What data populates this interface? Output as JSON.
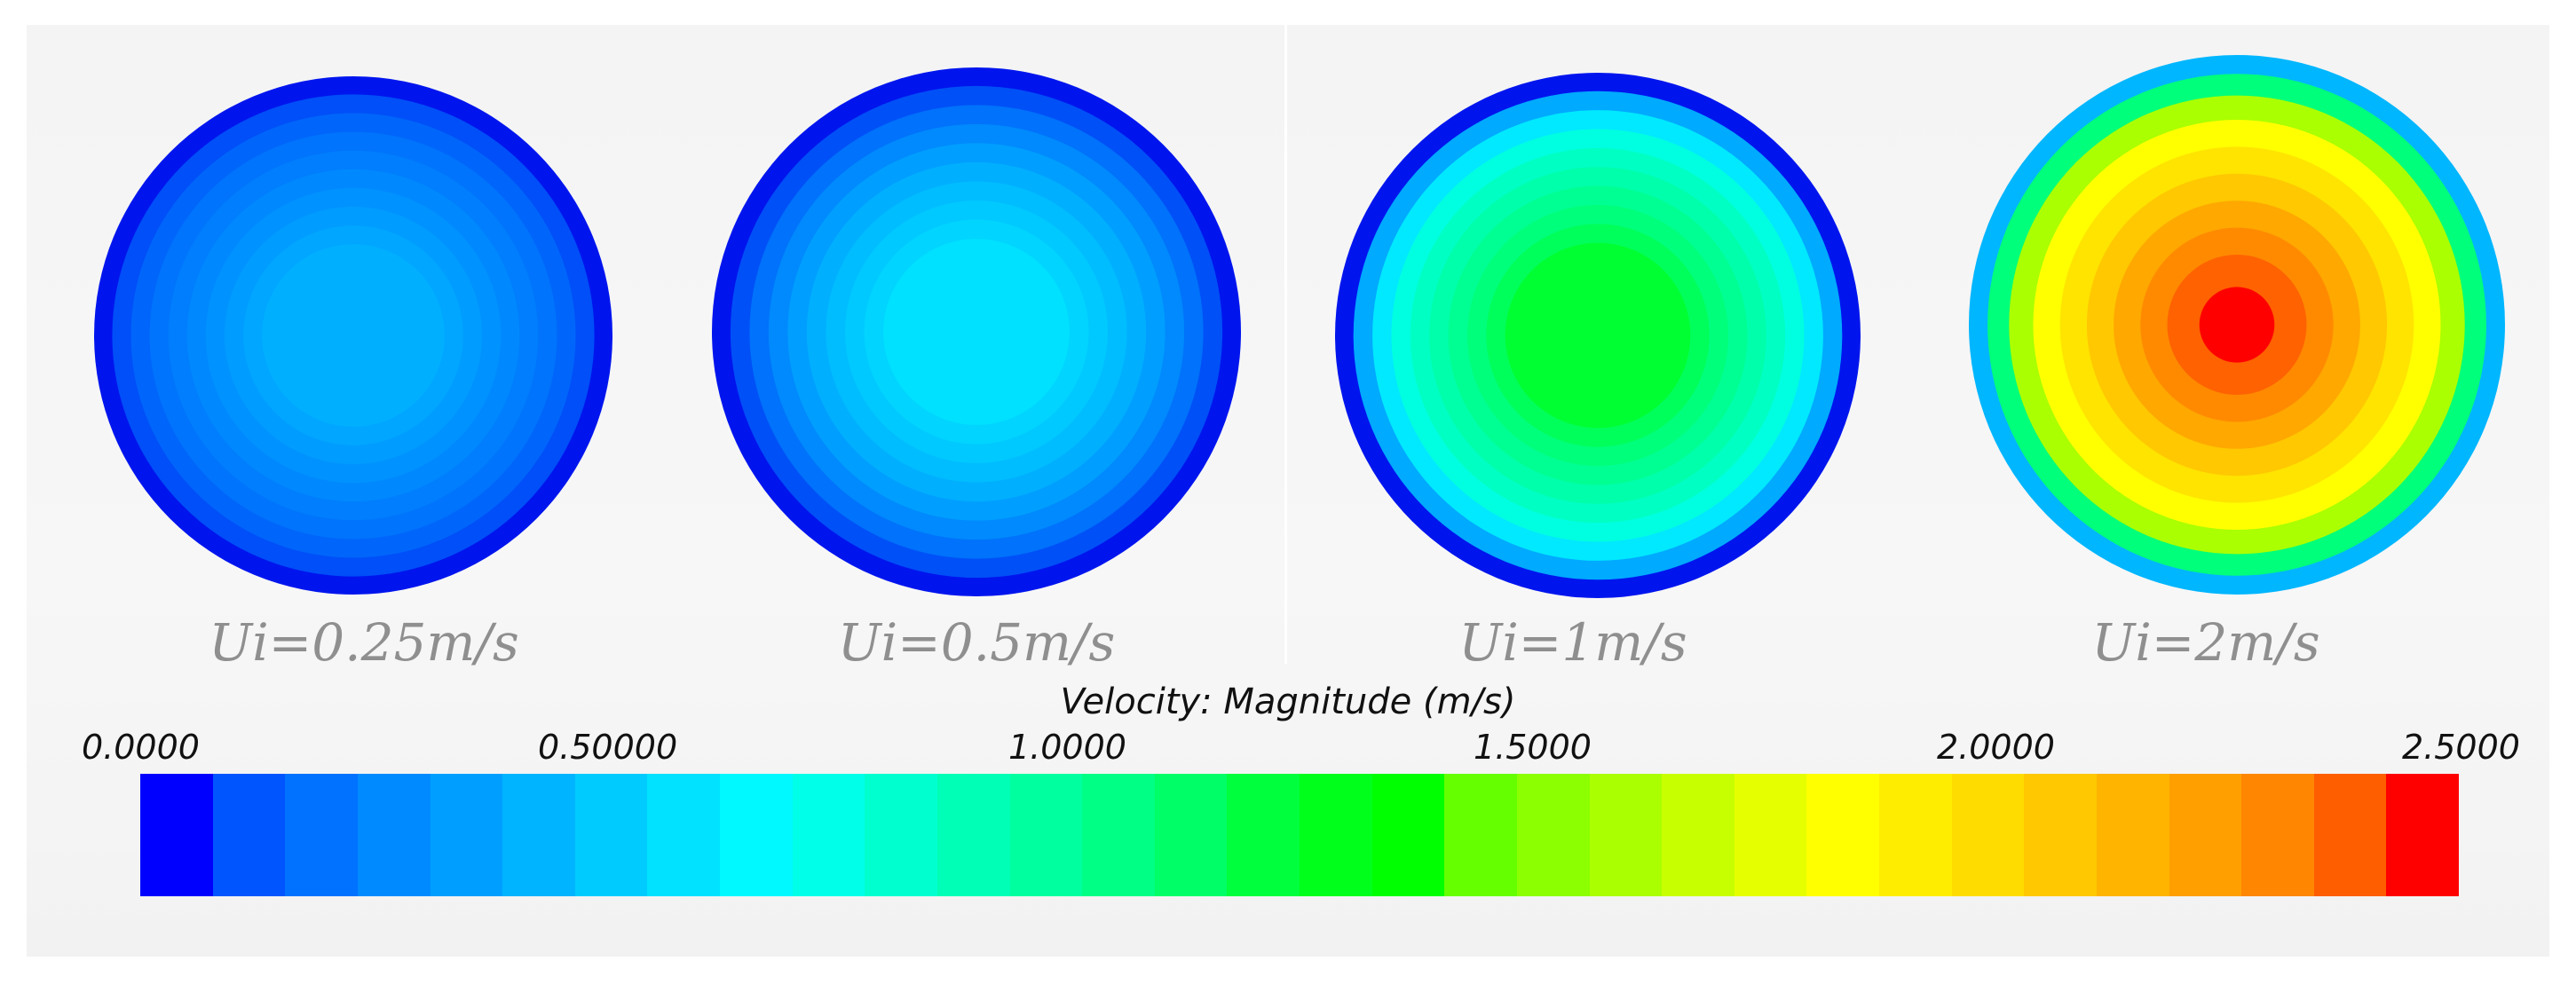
{
  "legend": {
    "title": "Velocity: Magnitude (m/s)",
    "ticks": [
      "0.0000",
      "0.50000",
      "1.0000",
      "1.5000",
      "2.0000",
      "2.5000"
    ],
    "tick_values": [
      0,
      0.5,
      1.0,
      1.5,
      2.0,
      2.5
    ],
    "range": [
      0,
      2.5
    ],
    "segments": 32,
    "colors": [
      "#0000ff",
      "#0055ff",
      "#0072ff",
      "#008aff",
      "#009fff",
      "#00b4ff",
      "#00cbff",
      "#00e2ff",
      "#00f8ff",
      "#00ffe8",
      "#00ffcf",
      "#00ffb6",
      "#00ff9e",
      "#00ff85",
      "#00ff66",
      "#00ff3c",
      "#00ff1a",
      "#00ff00",
      "#66ff00",
      "#8cff00",
      "#aaff00",
      "#c8ff00",
      "#e6ff00",
      "#ffff00",
      "#ffed00",
      "#ffdc00",
      "#ffc800",
      "#ffb400",
      "#ff9f00",
      "#ff8600",
      "#ff5e00",
      "#ff0000"
    ]
  },
  "contours": [
    {
      "caption": "Ui=0.25m/s",
      "edge_color": "#0015ee",
      "ring_colors": [
        "#0015ee",
        "#004ff8",
        "#0066fb",
        "#0074fc",
        "#007efd",
        "#0089fe",
        "#0093ff",
        "#009cff",
        "#00a6ff",
        "#00b0ff"
      ]
    },
    {
      "caption": "Ui=0.5m/s",
      "edge_color": "#0015ee",
      "ring_colors": [
        "#0015ee",
        "#0050f7",
        "#0072fb",
        "#008afd",
        "#009fff",
        "#00b0ff",
        "#00bdff",
        "#00c9ff",
        "#00d4ff",
        "#00e0ff"
      ]
    },
    {
      "caption": "Ui=1m/s",
      "edge_color": "#0015ee",
      "ring_colors": [
        "#0015ee",
        "#00aaff",
        "#00e9ff",
        "#00ffe0",
        "#00ffc3",
        "#00ffaa",
        "#00ff92",
        "#00ff7a",
        "#00ff5a",
        "#00ff32"
      ]
    },
    {
      "caption": "Ui=2m/s",
      "edge_color": "#00b6ff",
      "ring_colors": [
        "#00b6ff",
        "#00ff7a",
        "#aaff00",
        "#ffff00",
        "#ffe400",
        "#ffc800",
        "#ffa800",
        "#ff8a00",
        "#ff6200",
        "#ff0000"
      ]
    }
  ]
}
